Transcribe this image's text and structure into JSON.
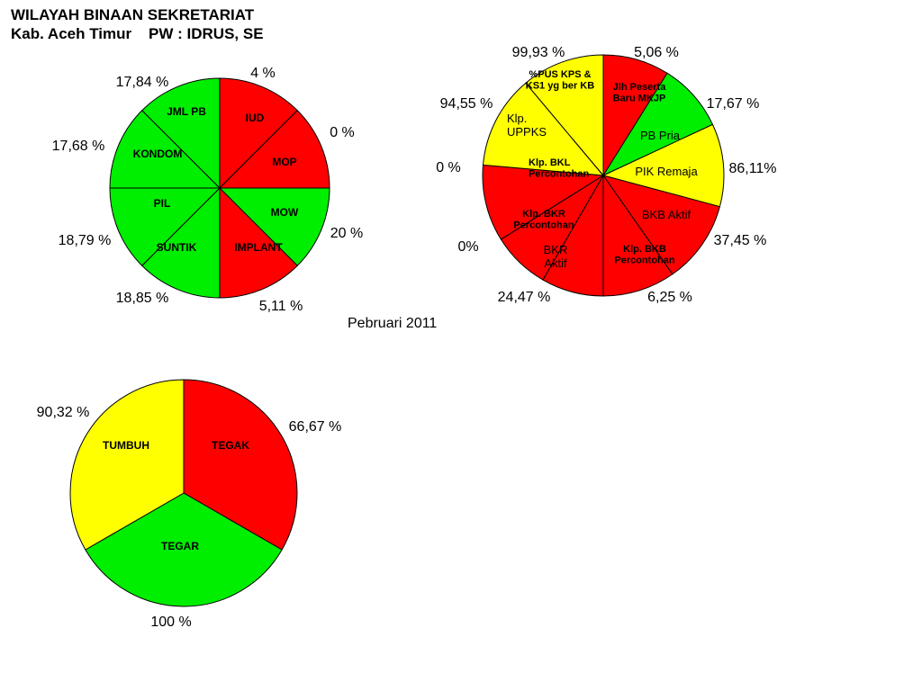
{
  "header": {
    "line1": "WILAYAH BINAAN SEKRETARIAT",
    "line2": "Kab. Aceh Timur    PW : IDRUS, SE"
  },
  "period": "Pebruari  2011",
  "colors": {
    "red": "#ff0000",
    "green": "#00ee00",
    "yellow": "#ffff00"
  },
  "chart_data": [
    {
      "type": "pie",
      "title": "",
      "note": "8 equal slices; color indicates status",
      "slices": [
        {
          "label": "IUD",
          "value": "4 %",
          "color": "#ff0000"
        },
        {
          "label": "MOP",
          "value": "0 %",
          "color": "#ff0000"
        },
        {
          "label": "MOW",
          "value": "20 %",
          "color": "#00ee00"
        },
        {
          "label": "IMPLANT",
          "value": "5,11 %",
          "color": "#ff0000"
        },
        {
          "label": "SUNTIK",
          "value": "18,85 %",
          "color": "#00ee00"
        },
        {
          "label": "PIL",
          "value": "18,79 %",
          "color": "#00ee00"
        },
        {
          "label": "KONDOM",
          "value": "17,68 %",
          "color": "#00ee00"
        },
        {
          "label": "JML PB",
          "value": "17,84 %",
          "color": "#00ee00"
        }
      ]
    },
    {
      "type": "pie",
      "title": "",
      "slices": [
        {
          "label": "Jlh Peserta Baru MKJP",
          "value": "5,06 %",
          "color": "#ff0000"
        },
        {
          "label": "PB Pria",
          "value": "17,67 %",
          "color": "#00ee00"
        },
        {
          "label": "PIK Remaja",
          "value": "86,11%",
          "color": "#ffff00"
        },
        {
          "label": "BKB Aktif",
          "value": "37,45 %",
          "color": "#ff0000"
        },
        {
          "label": "Klp. BKB Percontohan",
          "value": "6,25 %",
          "color": "#ff0000"
        },
        {
          "label": "BKR Aktif",
          "value": "24,47 %",
          "color": "#ff0000"
        },
        {
          "label": "Klp. BKR Percontohan",
          "value": "0%",
          "color": "#ff0000"
        },
        {
          "label": "Klp. BKL Percontohan",
          "value": "0 %",
          "color": "#ff0000"
        },
        {
          "label": "Klp. UPPKS",
          "value": "94,55 %",
          "color": "#ffff00"
        },
        {
          "label": "%PUS KPS & KS1 yg ber KB",
          "value": "99,93 %",
          "color": "#ffff00"
        }
      ]
    },
    {
      "type": "pie",
      "title": "",
      "slices": [
        {
          "label": "TEGAK",
          "value": "66,67 %",
          "color": "#ff0000"
        },
        {
          "label": "TEGAR",
          "value": "100 %",
          "color": "#00ee00"
        },
        {
          "label": "TUMBUH",
          "value": "90,32 %",
          "color": "#ffff00"
        }
      ]
    }
  ]
}
